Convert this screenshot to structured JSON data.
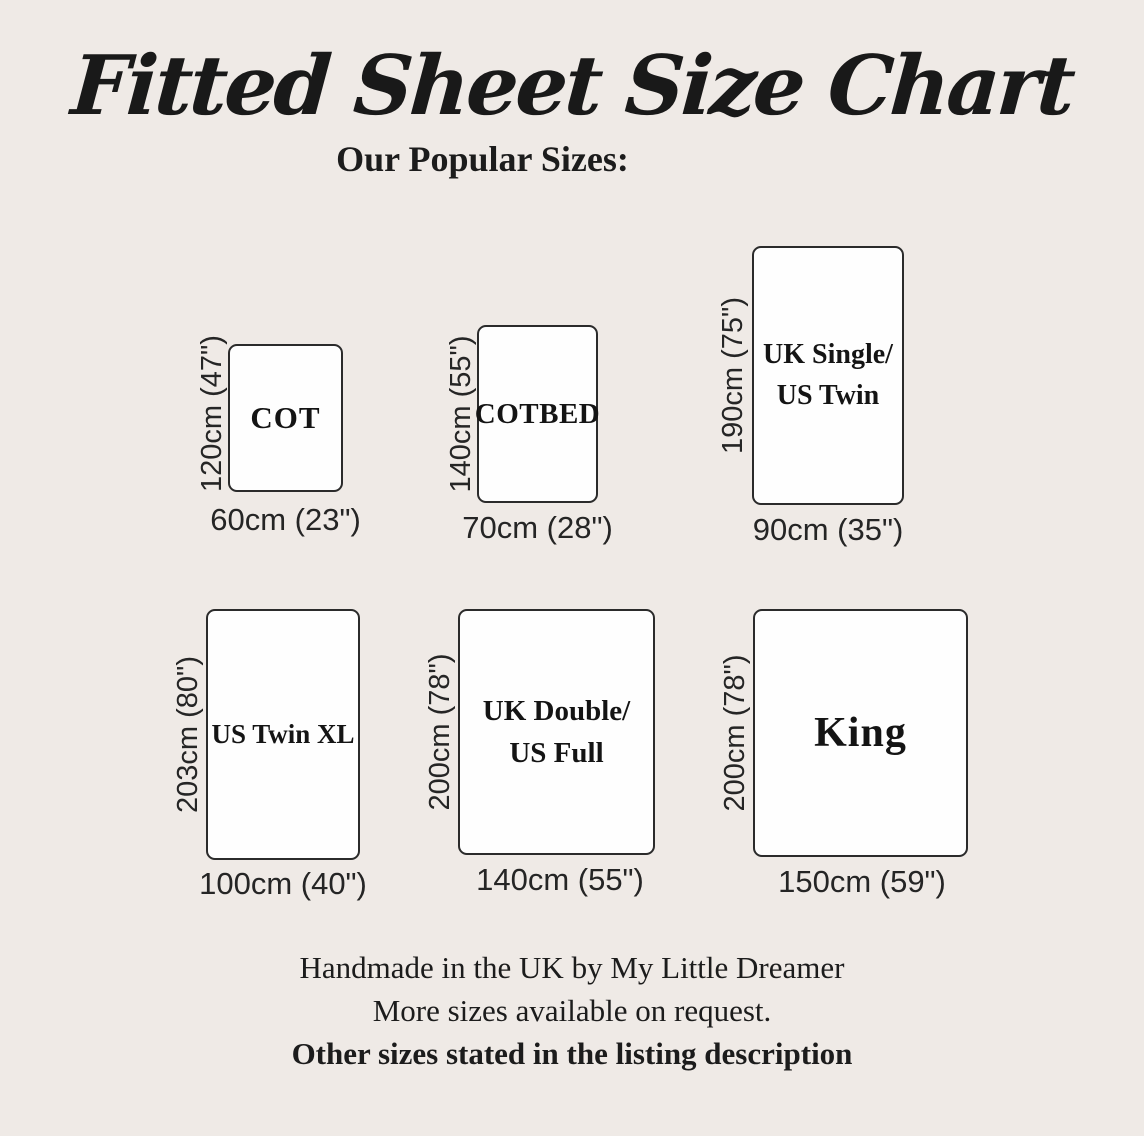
{
  "title": "Fitted Sheet Size Chart",
  "subtitle": "Our Popular Sizes:",
  "sheets": [
    {
      "id": "cot",
      "name_lines": [
        "COT"
      ],
      "height_label": "120cm (47\")",
      "width_label": "60cm (23\")"
    },
    {
      "id": "cotbed",
      "name_lines": [
        "COTBED"
      ],
      "height_label": "140cm (55\")",
      "width_label": "70cm (28\")"
    },
    {
      "id": "single",
      "name_lines": [
        "UK Single/",
        "US Twin"
      ],
      "height_label": "190cm (75\")",
      "width_label": "90cm (35\")"
    },
    {
      "id": "twinxl",
      "name_lines": [
        "US Twin XL"
      ],
      "height_label": "203cm (80\")",
      "width_label": "100cm (40\")"
    },
    {
      "id": "double",
      "name_lines": [
        "UK Double/",
        "US Full"
      ],
      "height_label": "200cm (78\")",
      "width_label": "140cm (55\")"
    },
    {
      "id": "king",
      "name_lines": [
        "King"
      ],
      "height_label": "200cm (78\")",
      "width_label": "150cm (59\")"
    }
  ],
  "footer": {
    "line1": "Handmade in the UK by My Little Dreamer",
    "line2": "More sizes available on request.",
    "line3": "Other sizes stated in the listing description"
  },
  "colors": {
    "background": "#efeae6",
    "sheet_fill": "#fefefe",
    "border": "#2b2b2b",
    "text": "#1c1c1c"
  }
}
